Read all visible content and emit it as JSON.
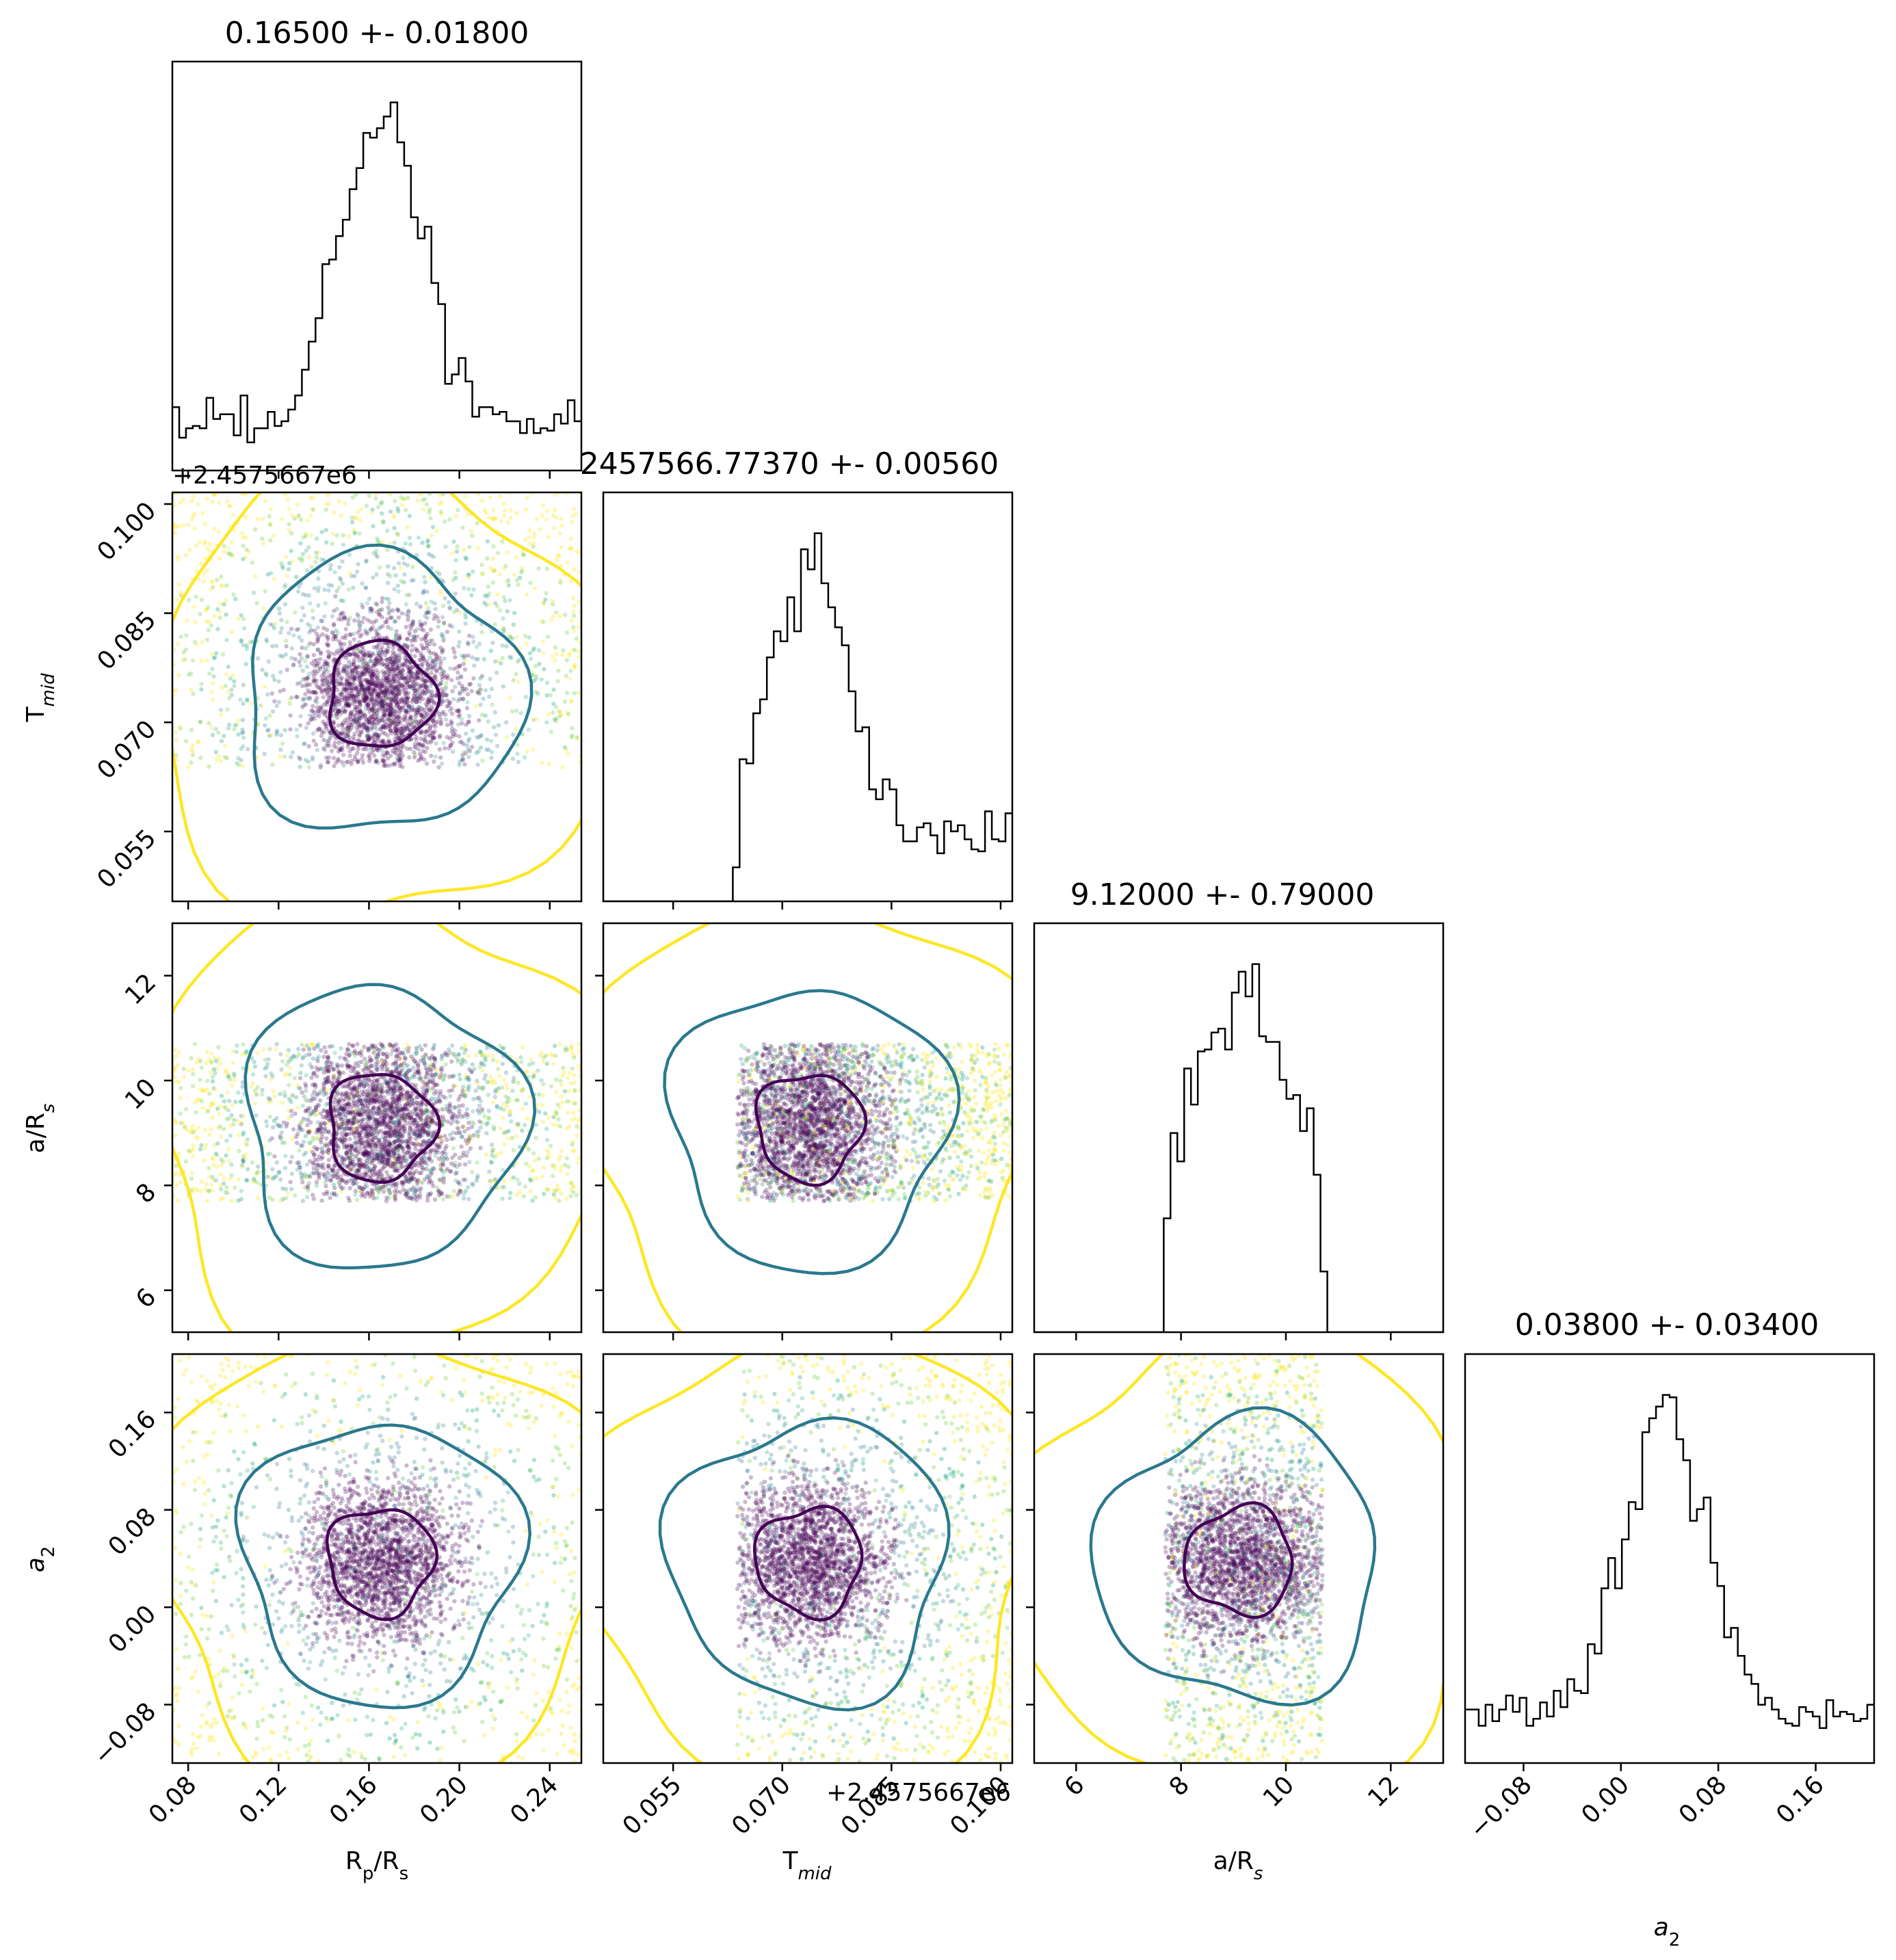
{
  "chart_data": {
    "type": "corner",
    "parameters": [
      {
        "key": "rp",
        "title": "0.16500 +- 0.01800",
        "label_main": "R",
        "label_sub": "p",
        "label_tail": "/R",
        "label_sub2": "s",
        "range": [
          0.073,
          0.254
        ],
        "ticks": [
          0.08,
          0.12,
          0.16,
          0.2,
          0.24
        ],
        "tick_labels": [
          "0.08",
          "0.12",
          "0.16",
          "0.20",
          "0.24"
        ],
        "median": 0.165,
        "sigma": 0.018
      },
      {
        "key": "tmid",
        "title": "2457566.77370 +- 0.00560",
        "label_main": "T",
        "label_sub": "mid",
        "range": [
          0.0454,
          0.1016
        ],
        "ticks": [
          0.055,
          0.07,
          0.085,
          0.1
        ],
        "tick_labels": [
          "0.055",
          "0.070",
          "0.085",
          "0.100"
        ],
        "offset_text": "+2.4575667e6",
        "median": 0.0737,
        "sigma": 0.0056
      },
      {
        "key": "ars",
        "title": "9.12000 +- 0.79000",
        "label_main": "a/R",
        "label_sub": "s",
        "range": [
          5.2,
          13.0
        ],
        "ticks": [
          6,
          8,
          10,
          12
        ],
        "tick_labels": [
          "6",
          "8",
          "10",
          "12"
        ],
        "median": 9.12,
        "sigma": 0.79
      },
      {
        "key": "a2",
        "title": "0.03800 +- 0.03400",
        "label_main": "a",
        "label_sub": "2",
        "range": [
          -0.128,
          0.208
        ],
        "ticks": [
          -0.08,
          0.0,
          0.08,
          0.16
        ],
        "tick_labels": [
          "−0.08",
          "0.00",
          "0.08",
          "0.16"
        ],
        "median": 0.038,
        "sigma": 0.034
      }
    ],
    "offset_texts": {
      "row1_top": "+2.4575667e6",
      "col1_bottom": "+2.4575667e6"
    },
    "colormap": [
      "#440154",
      "#2a788e",
      "#22a884",
      "#7ad151",
      "#fde725"
    ],
    "contour_colors": [
      "#440154",
      "#2a788e",
      "#fde725"
    ],
    "grid": false
  }
}
